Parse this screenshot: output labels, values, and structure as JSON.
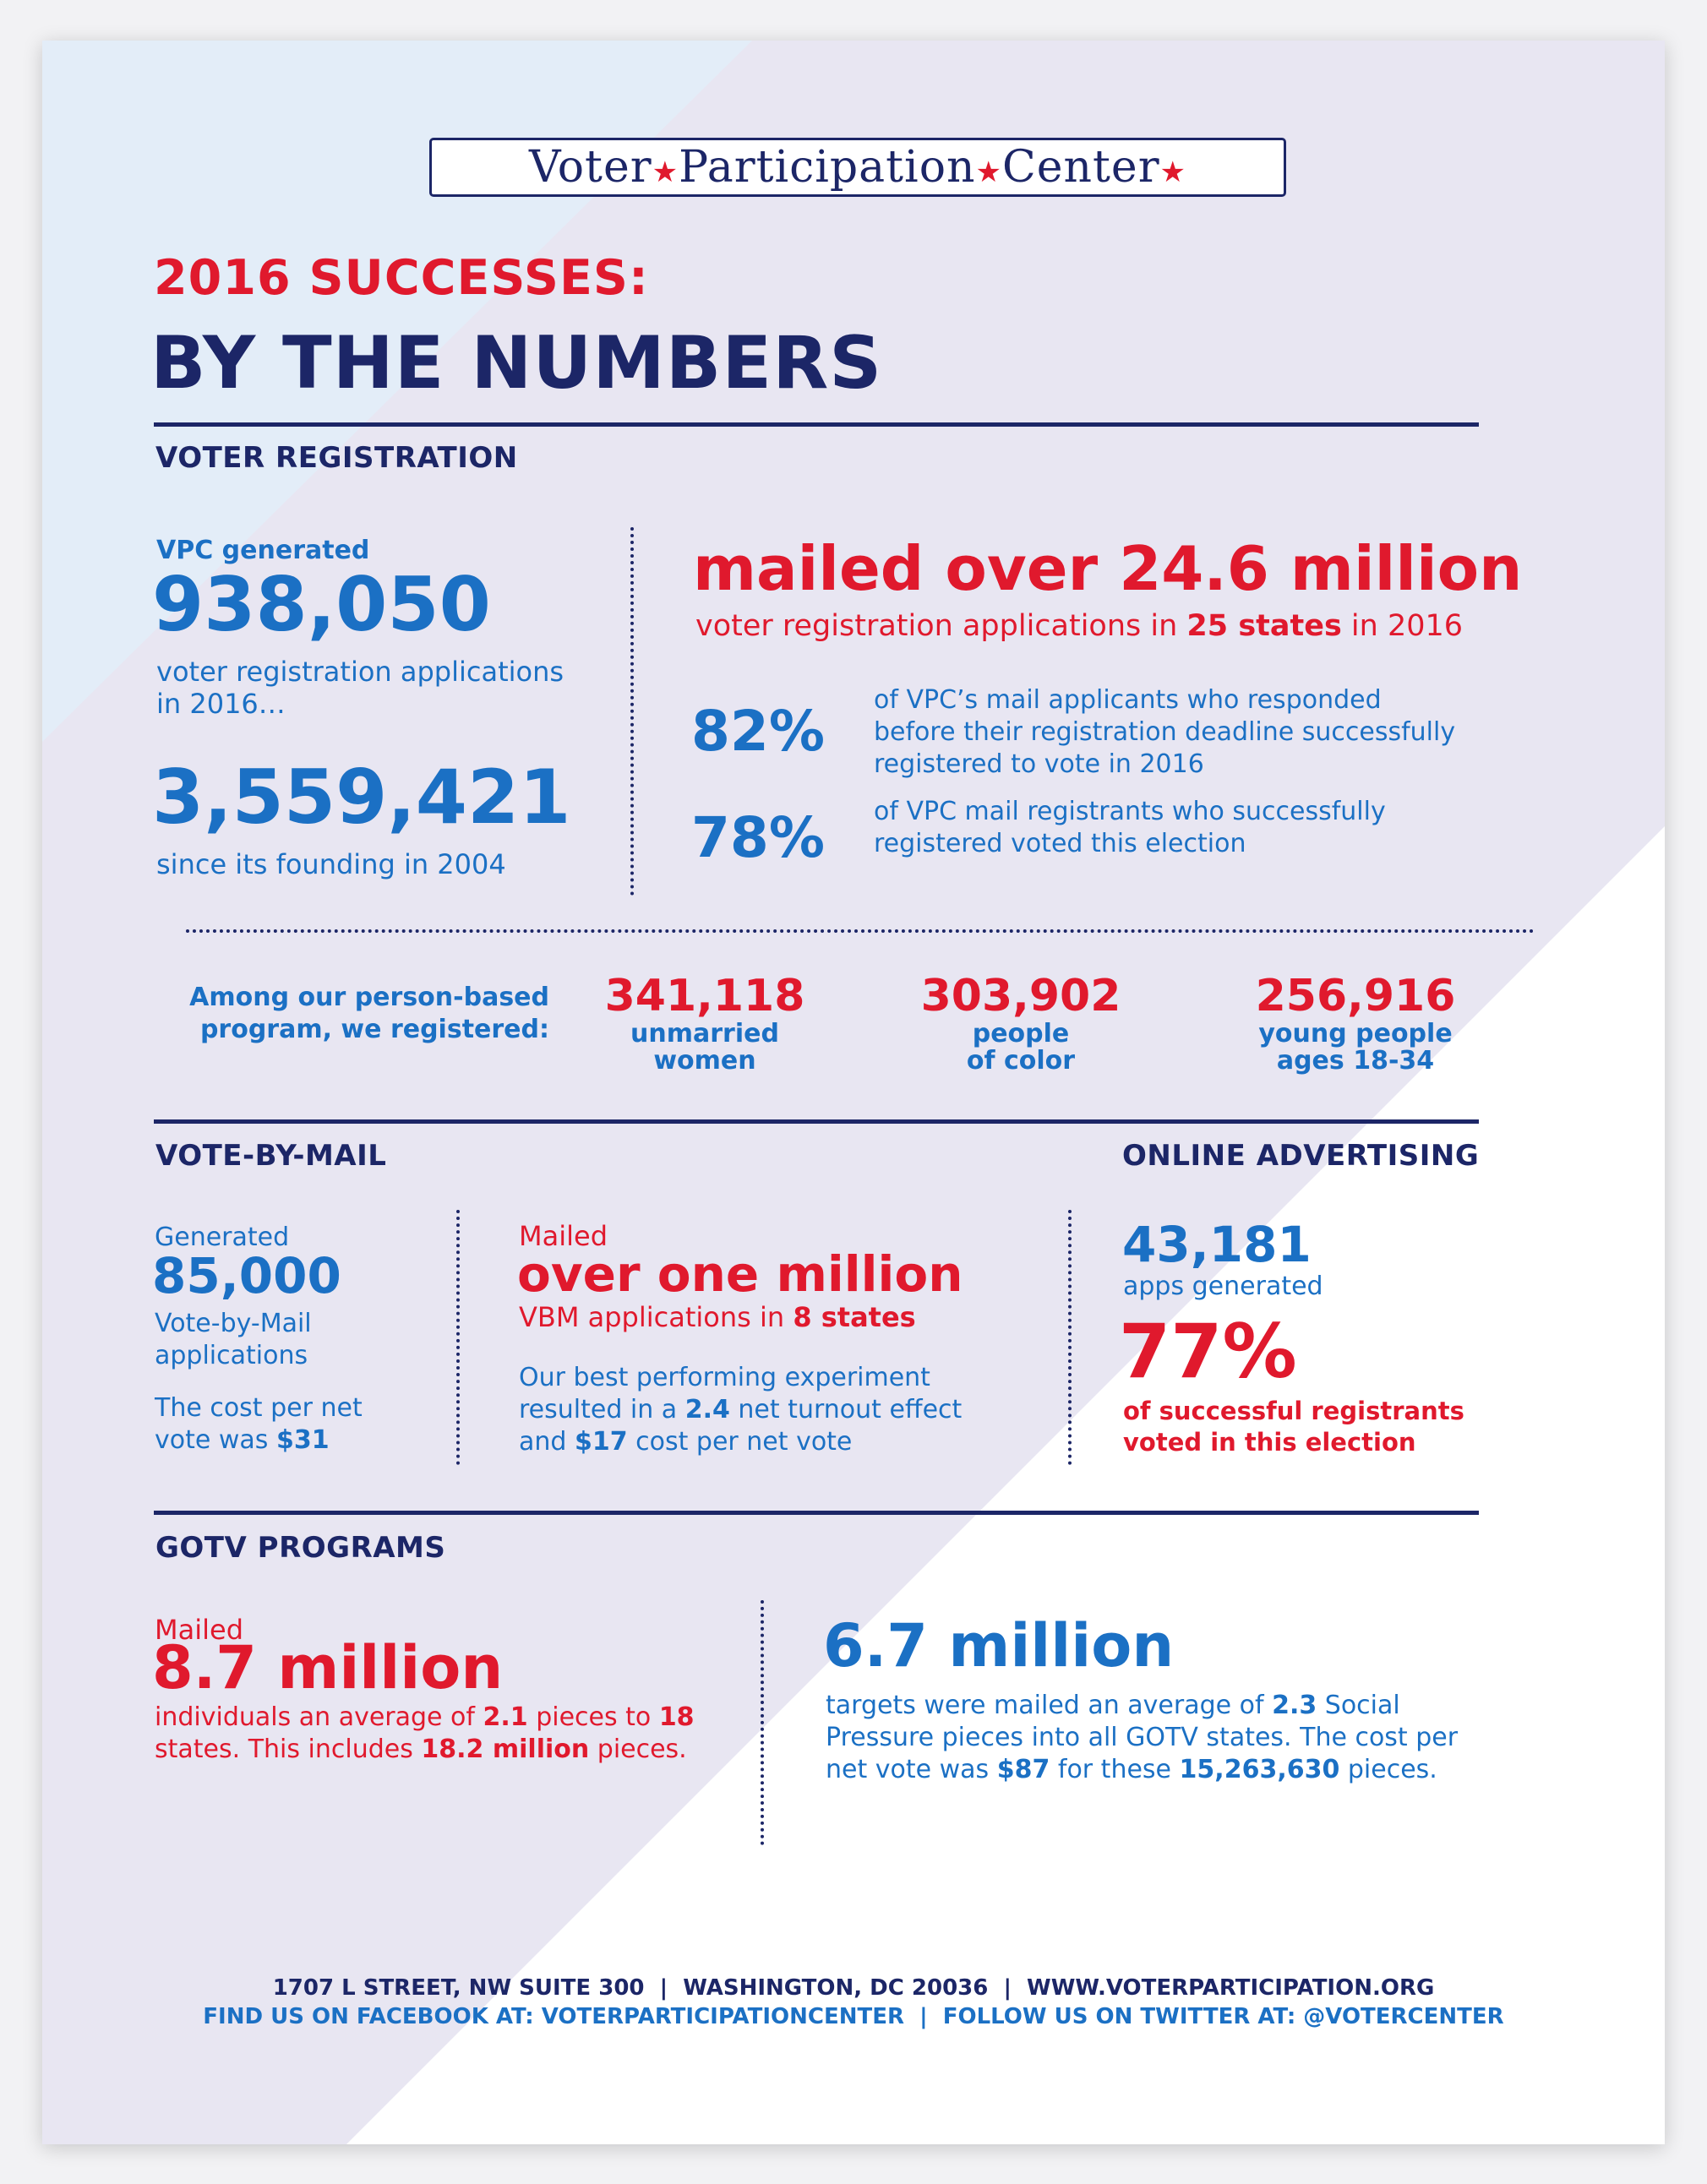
{
  "logo": {
    "word1": "Voter",
    "word2": "Participation",
    "word3": "Center"
  },
  "header": {
    "kicker": "2016 SUCCESSES:",
    "title": "BY THE NUMBERS"
  },
  "voter_registration": {
    "heading": "VOTER REGISTRATION",
    "vpc_generated_label": "VPC generated",
    "generated_value": "938,050",
    "generated_desc": "voter registration applications in 2016…",
    "since_value": "3,559,421",
    "since_desc": "since its founding in 2004",
    "mailed_headline": "mailed over 24.6 million",
    "mailed_desc_pre": "voter registration applications in ",
    "mailed_desc_bold": "25 states",
    "mailed_desc_post": " in 2016",
    "stat1_value": "82%",
    "stat1_desc": "of VPC’s mail applicants who responded before their registration deadline successfully registered to vote in 2016",
    "stat2_value": "78%",
    "stat2_desc": "of VPC mail registrants who successfully registered voted this election"
  },
  "person_based": {
    "intro": "Among our person-based program, we registered:",
    "groups": [
      {
        "value": "341,118",
        "label_line1": "unmarried",
        "label_line2": "women"
      },
      {
        "value": "303,902",
        "label_line1": "people",
        "label_line2": "of color"
      },
      {
        "value": "256,916",
        "label_line1": "young people",
        "label_line2": "ages 18-34"
      }
    ]
  },
  "vote_by_mail": {
    "heading": "VOTE-BY-MAIL",
    "generated_label": "Generated",
    "generated_value": "85,000",
    "generated_desc": "Vote-by-Mail applications",
    "cost_pre": "The cost per net vote was ",
    "cost_bold": "$31",
    "mailed_label": "Mailed",
    "mailed_headline": "over one million",
    "mailed_desc_pre": "VBM applications in ",
    "mailed_desc_bold": "8 states",
    "experiment_1": "Our best performing experiment resulted in a ",
    "experiment_bold1": "2.4",
    "experiment_2": " net turnout effect and ",
    "experiment_bold2": "$17",
    "experiment_3": " cost per net vote"
  },
  "online_advertising": {
    "heading": "ONLINE ADVERTISING",
    "apps_value": "43,181",
    "apps_desc": "apps generated",
    "pct_value": "77%",
    "pct_desc": "of successful registrants voted in this election"
  },
  "gotv": {
    "heading": "GOTV PROGRAMS",
    "mailed_label": "Mailed",
    "mailed_value": "8.7 million",
    "mailed_desc_1": "individuals an average of ",
    "mailed_bold1": "2.1",
    "mailed_desc_2": " pieces to ",
    "mailed_bold2": "18",
    "mailed_desc_3": " states. This includes ",
    "mailed_bold3": "18.2 million",
    "mailed_desc_4": " pieces.",
    "targets_value": "6.7 million",
    "targets_desc_1": "targets were mailed an average of ",
    "targets_bold1": "2.3",
    "targets_desc_2": " Social Pressure pieces into all GOTV states. The cost per net vote was ",
    "targets_bold2": "$87",
    "targets_desc_3": " for these ",
    "targets_bold3": "15,263,630",
    "targets_desc_4": " pieces."
  },
  "footer": {
    "line1": "1707 L STREET, NW SUITE 300  |  WASHINGTON, DC 20036  |  WWW.VOTERPARTICIPATION.ORG",
    "line2": "FIND US ON FACEBOOK AT: VOTERPARTICIPATIONCENTER  |  FOLLOW US ON TWITTER AT: @VOTERCENTER"
  },
  "colors": {
    "red": "#e0192d",
    "blue": "#1b70c4",
    "navy": "#1c2667",
    "lavender": "#e8e6f2",
    "light_blue": "#e4eef8"
  }
}
